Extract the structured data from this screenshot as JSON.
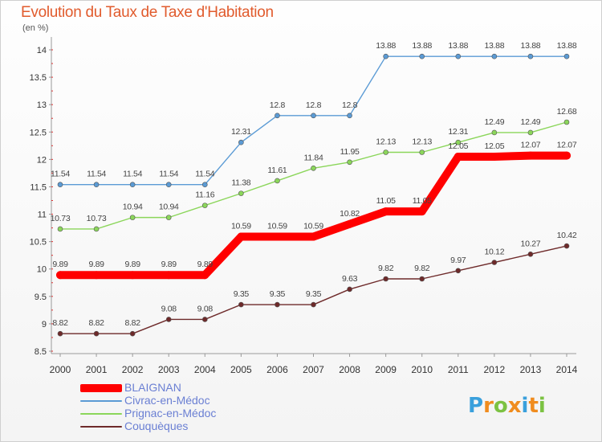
{
  "chart_data": {
    "type": "line",
    "title": "Evolution du Taux de Taxe d'Habitation",
    "subtitle": "(en %)",
    "x": [
      "2000",
      "2001",
      "2002",
      "2003",
      "2004",
      "2005",
      "2006",
      "2007",
      "2008",
      "2009",
      "2010",
      "2011",
      "2012",
      "2013",
      "2014"
    ],
    "ylim": [
      8.5,
      14
    ],
    "yticks": [
      "8.5",
      "9",
      "9.5",
      "10",
      "10.5",
      "11",
      "11.5",
      "12",
      "12.5",
      "13",
      "13.5",
      "14"
    ],
    "grid": false,
    "legend": "bottom-left",
    "series": [
      {
        "name": "BLAIGNAN",
        "color": "#ff0000",
        "values": [
          9.89,
          9.89,
          9.89,
          9.89,
          9.89,
          10.59,
          10.59,
          10.59,
          10.82,
          11.05,
          11.05,
          12.05,
          12.05,
          12.07,
          12.07
        ],
        "labels": [
          "9.89",
          "9.89",
          "9.89",
          "9.89",
          "9.89",
          "10.59",
          "10.59",
          "10.59",
          "10.82",
          "11.05",
          "11.05",
          "12.05",
          "12.05",
          "12.07",
          "12.07"
        ]
      },
      {
        "name": "Civrac-en-Médoc",
        "color": "#5b9bd5",
        "values": [
          11.54,
          11.54,
          11.54,
          11.54,
          11.54,
          12.31,
          12.8,
          12.8,
          12.8,
          13.88,
          13.88,
          13.88,
          13.88,
          13.88,
          13.88
        ],
        "labels": [
          "11.54",
          "11.54",
          "11.54",
          "11.54",
          "11.54",
          "12.31",
          "12.8",
          "12.8",
          "12.8",
          "13.88",
          "13.88",
          "13.88",
          "13.88",
          "13.88",
          "13.88"
        ]
      },
      {
        "name": "Prignac-en-Médoc",
        "color": "#8bd65a",
        "values": [
          10.73,
          10.73,
          10.94,
          10.94,
          11.16,
          11.38,
          11.61,
          11.84,
          11.95,
          12.13,
          12.13,
          12.31,
          12.49,
          12.49,
          12.68
        ],
        "labels": [
          "10.73",
          "10.73",
          "10.94",
          "10.94",
          "11.16",
          "11.38",
          "11.61",
          "11.84",
          "11.95",
          "12.13",
          "12.13",
          "12.31",
          "12.49",
          "12.49",
          "12.68"
        ]
      },
      {
        "name": "Couquèques",
        "color": "#6e2a2a",
        "values": [
          8.82,
          8.82,
          8.82,
          9.08,
          9.08,
          9.35,
          9.35,
          9.35,
          9.63,
          9.82,
          9.82,
          9.97,
          10.12,
          10.27,
          10.42
        ],
        "labels": [
          "8.82",
          "8.82",
          "8.82",
          "9.08",
          "9.08",
          "9.35",
          "9.35",
          "9.35",
          "9.63",
          "9.82",
          "9.82",
          "9.97",
          "10.12",
          "10.27",
          "10.42"
        ]
      }
    ]
  },
  "logo": {
    "letters": [
      "P",
      "r",
      "o",
      "x",
      "i",
      "t",
      "i"
    ],
    "colors": [
      "#3aa0dc",
      "#f08c1e",
      "#7cc242",
      "#f08c1e",
      "#3aa0dc",
      "#f08c1e",
      "#7cc242"
    ]
  }
}
